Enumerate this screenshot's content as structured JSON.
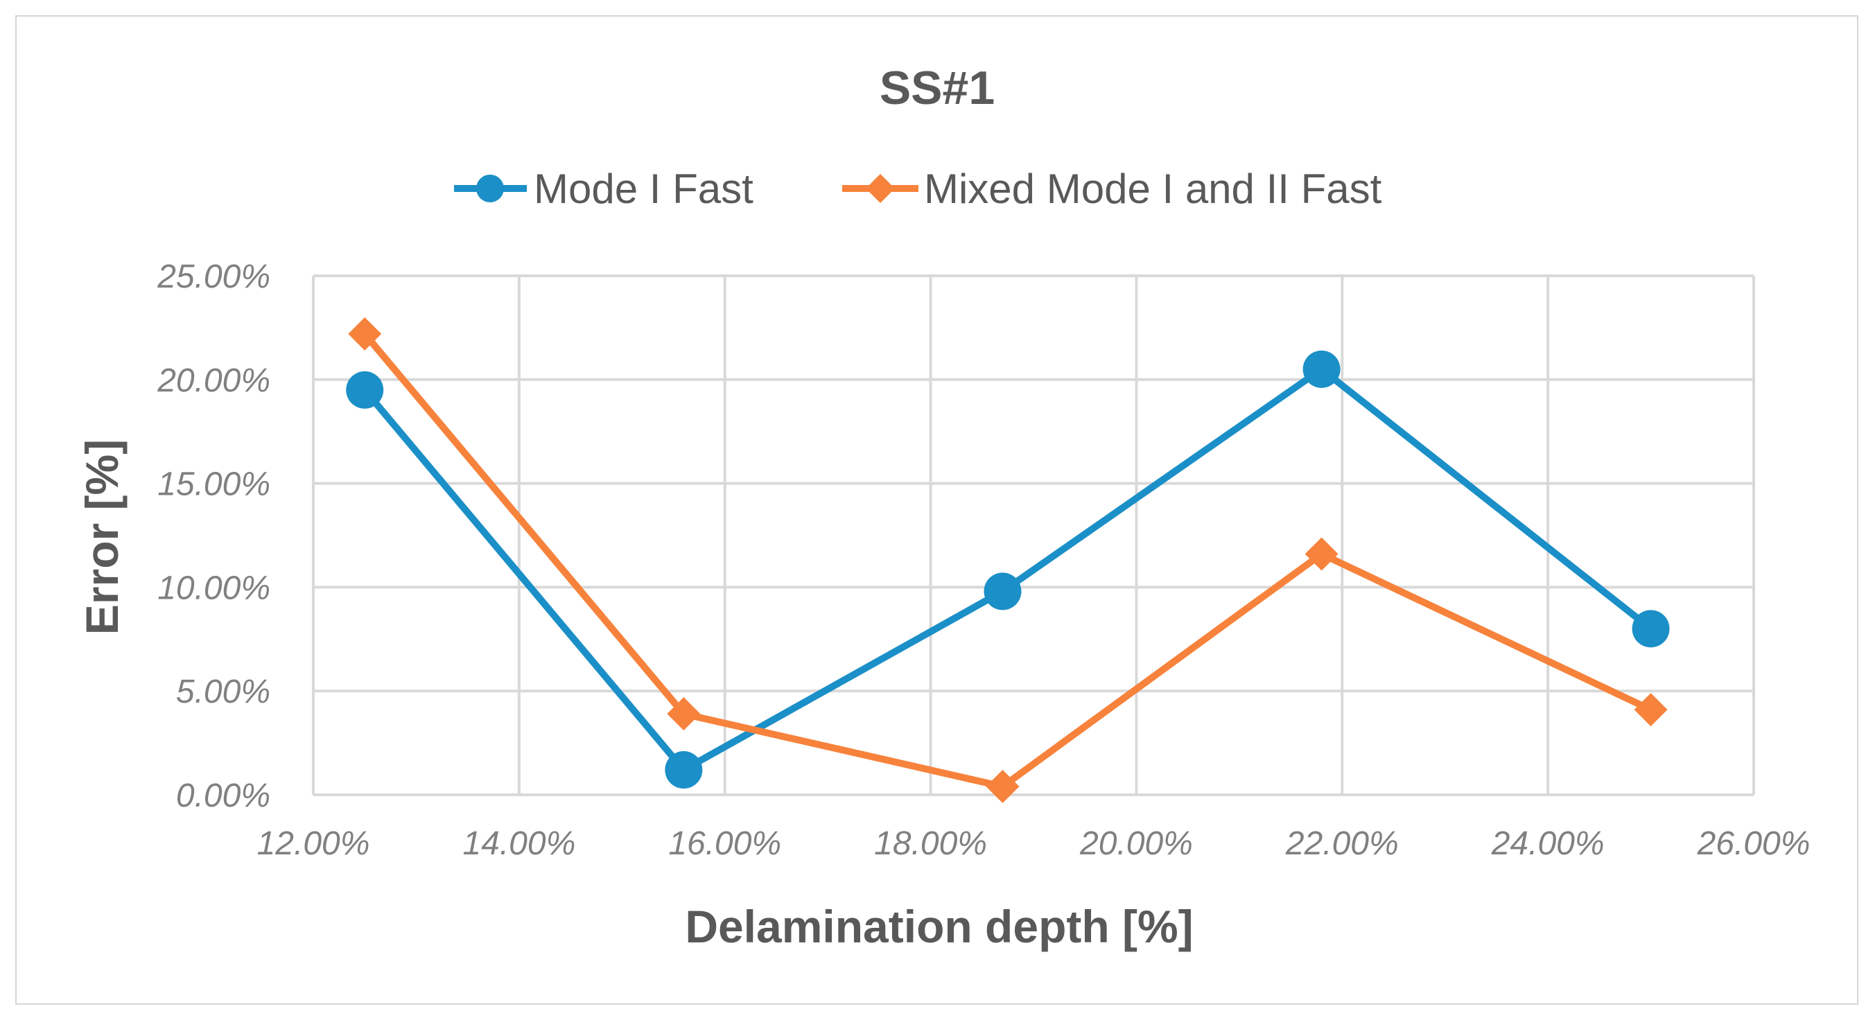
{
  "chart_data": {
    "type": "line",
    "title": "SS#1",
    "xlabel": "Delamination depth [%]",
    "ylabel": "Error [%]",
    "xlim": [
      12,
      26
    ],
    "ylim": [
      0,
      25
    ],
    "x_ticks": [
      "12.00%",
      "14.00%",
      "16.00%",
      "18.00%",
      "20.00%",
      "22.00%",
      "24.00%",
      "26.00%"
    ],
    "y_ticks": [
      "0.00%",
      "5.00%",
      "10.00%",
      "15.00%",
      "20.00%",
      "25.00%"
    ],
    "grid": true,
    "legend_position": "top",
    "series": [
      {
        "name": "Mode I Fast",
        "color": "#1b8fc7",
        "marker": "circle",
        "x": [
          12.5,
          15.6,
          18.7,
          21.8,
          25.0
        ],
        "y": [
          19.5,
          1.2,
          9.8,
          20.5,
          8.0
        ]
      },
      {
        "name": "Mixed Mode I and II Fast",
        "color": "#f7823b",
        "marker": "diamond",
        "x": [
          12.5,
          15.6,
          18.7,
          21.8,
          25.0
        ],
        "y": [
          22.2,
          3.9,
          0.4,
          11.6,
          4.1
        ]
      }
    ]
  }
}
